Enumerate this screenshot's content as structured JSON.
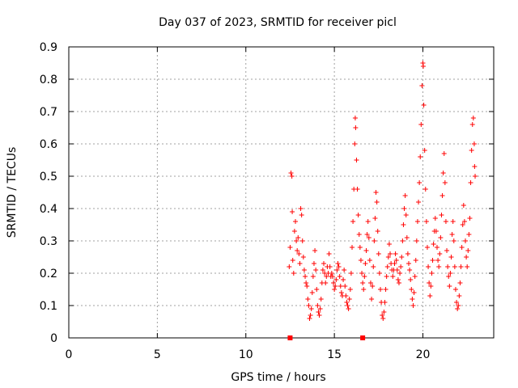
{
  "colors": {
    "series": "#ff0000",
    "grid": "#a0a0a0",
    "axis": "#000000"
  },
  "chart_data": {
    "type": "scatter",
    "title": "Day 037 of 2023, SRMTID for receiver picl",
    "xlabel": "GPS time / hours",
    "ylabel": "SRMTID / TECUs",
    "xlim": [
      0,
      24
    ],
    "ylim": [
      0,
      0.9
    ],
    "xticks": [
      0,
      5,
      10,
      15,
      20
    ],
    "yticks": [
      0,
      0.1,
      0.2,
      0.3,
      0.4,
      0.5,
      0.6,
      0.7,
      0.8,
      0.9
    ],
    "xtick_labels": [
      "0",
      "5",
      "10",
      "15",
      "20"
    ],
    "ytick_labels": [
      "0",
      "0.1",
      "0.2",
      "0.3",
      "0.4",
      "0.5",
      "0.6",
      "0.7",
      "0.8",
      "0.9"
    ],
    "grid": true,
    "marker": "plus",
    "series": [
      {
        "name": "SRMTID",
        "points": [
          [
            12.45,
            0.22
          ],
          [
            12.5,
            0.28
          ],
          [
            12.55,
            0.51
          ],
          [
            12.6,
            0.5
          ],
          [
            12.62,
            0.39
          ],
          [
            12.65,
            0.24
          ],
          [
            12.7,
            0.2
          ],
          [
            12.75,
            0.33
          ],
          [
            12.8,
            0.36
          ],
          [
            12.85,
            0.3
          ],
          [
            12.9,
            0.27
          ],
          [
            12.95,
            0.31
          ],
          [
            13.0,
            0.26
          ],
          [
            13.05,
            0.23
          ],
          [
            13.1,
            0.4
          ],
          [
            13.15,
            0.38
          ],
          [
            13.2,
            0.3
          ],
          [
            13.25,
            0.25
          ],
          [
            13.3,
            0.21
          ],
          [
            13.35,
            0.19
          ],
          [
            13.4,
            0.17
          ],
          [
            13.45,
            0.16
          ],
          [
            13.5,
            0.12
          ],
          [
            13.55,
            0.1
          ],
          [
            13.6,
            0.06
          ],
          [
            13.65,
            0.07
          ],
          [
            13.7,
            0.09
          ],
          [
            13.75,
            0.14
          ],
          [
            13.8,
            0.19
          ],
          [
            13.85,
            0.23
          ],
          [
            13.9,
            0.27
          ],
          [
            13.95,
            0.21
          ],
          [
            14.0,
            0.15
          ],
          [
            14.05,
            0.1
          ],
          [
            14.1,
            0.08
          ],
          [
            14.15,
            0.07
          ],
          [
            14.2,
            0.09
          ],
          [
            14.25,
            0.12
          ],
          [
            14.3,
            0.17
          ],
          [
            14.35,
            0.21
          ],
          [
            14.4,
            0.23
          ],
          [
            14.45,
            0.2
          ],
          [
            14.5,
            0.17
          ],
          [
            14.55,
            0.19
          ],
          [
            14.6,
            0.22
          ],
          [
            14.65,
            0.2
          ],
          [
            14.7,
            0.26
          ],
          [
            14.75,
            0.22
          ],
          [
            14.8,
            0.19
          ],
          [
            14.85,
            0.2
          ],
          [
            14.9,
            0.19
          ],
          [
            14.95,
            0.17
          ],
          [
            15.0,
            0.15
          ],
          [
            15.05,
            0.16
          ],
          [
            15.1,
            0.18
          ],
          [
            15.15,
            0.21
          ],
          [
            15.2,
            0.23
          ],
          [
            15.25,
            0.22
          ],
          [
            15.3,
            0.19
          ],
          [
            15.35,
            0.16
          ],
          [
            15.4,
            0.14
          ],
          [
            15.45,
            0.13
          ],
          [
            15.5,
            0.18
          ],
          [
            15.55,
            0.21
          ],
          [
            15.6,
            0.16
          ],
          [
            15.65,
            0.13
          ],
          [
            15.7,
            0.11
          ],
          [
            15.75,
            0.1
          ],
          [
            15.8,
            0.09
          ],
          [
            15.85,
            0.12
          ],
          [
            15.9,
            0.15
          ],
          [
            15.95,
            0.2
          ],
          [
            16.0,
            0.28
          ],
          [
            16.05,
            0.36
          ],
          [
            16.1,
            0.46
          ],
          [
            16.15,
            0.6
          ],
          [
            16.18,
            0.68
          ],
          [
            16.2,
            0.65
          ],
          [
            16.25,
            0.55
          ],
          [
            16.3,
            0.46
          ],
          [
            16.35,
            0.38
          ],
          [
            16.4,
            0.32
          ],
          [
            16.45,
            0.28
          ],
          [
            16.5,
            0.24
          ],
          [
            16.55,
            0.2
          ],
          [
            16.6,
            0.17
          ],
          [
            16.65,
            0.15
          ],
          [
            16.7,
            0.19
          ],
          [
            16.75,
            0.23
          ],
          [
            16.8,
            0.27
          ],
          [
            16.85,
            0.32
          ],
          [
            16.9,
            0.36
          ],
          [
            16.95,
            0.31
          ],
          [
            17.0,
            0.24
          ],
          [
            17.05,
            0.17
          ],
          [
            17.1,
            0.12
          ],
          [
            17.15,
            0.16
          ],
          [
            17.2,
            0.22
          ],
          [
            17.25,
            0.3
          ],
          [
            17.3,
            0.37
          ],
          [
            17.35,
            0.45
          ],
          [
            17.4,
            0.42
          ],
          [
            17.45,
            0.33
          ],
          [
            17.5,
            0.26
          ],
          [
            17.55,
            0.2
          ],
          [
            17.6,
            0.15
          ],
          [
            17.65,
            0.11
          ],
          [
            17.7,
            0.07
          ],
          [
            17.75,
            0.06
          ],
          [
            17.8,
            0.08
          ],
          [
            17.85,
            0.11
          ],
          [
            17.9,
            0.15
          ],
          [
            17.95,
            0.19
          ],
          [
            18.0,
            0.22
          ],
          [
            18.05,
            0.25
          ],
          [
            18.1,
            0.29
          ],
          [
            18.15,
            0.26
          ],
          [
            18.2,
            0.23
          ],
          [
            18.25,
            0.21
          ],
          [
            18.3,
            0.19
          ],
          [
            18.35,
            0.21
          ],
          [
            18.4,
            0.23
          ],
          [
            18.45,
            0.26
          ],
          [
            18.5,
            0.24
          ],
          [
            18.55,
            0.21
          ],
          [
            18.6,
            0.18
          ],
          [
            18.65,
            0.17
          ],
          [
            18.7,
            0.2
          ],
          [
            18.75,
            0.22
          ],
          [
            18.8,
            0.25
          ],
          [
            18.85,
            0.3
          ],
          [
            18.9,
            0.35
          ],
          [
            18.95,
            0.4
          ],
          [
            19.0,
            0.44
          ],
          [
            19.05,
            0.38
          ],
          [
            19.1,
            0.31
          ],
          [
            19.15,
            0.26
          ],
          [
            19.2,
            0.23
          ],
          [
            19.25,
            0.21
          ],
          [
            19.3,
            0.18
          ],
          [
            19.35,
            0.15
          ],
          [
            19.4,
            0.12
          ],
          [
            19.45,
            0.1
          ],
          [
            19.5,
            0.14
          ],
          [
            19.55,
            0.19
          ],
          [
            19.6,
            0.24
          ],
          [
            19.65,
            0.3
          ],
          [
            19.7,
            0.36
          ],
          [
            19.75,
            0.42
          ],
          [
            19.8,
            0.48
          ],
          [
            19.85,
            0.56
          ],
          [
            19.9,
            0.66
          ],
          [
            19.95,
            0.78
          ],
          [
            20.0,
            0.85
          ],
          [
            20.02,
            0.84
          ],
          [
            20.05,
            0.72
          ],
          [
            20.1,
            0.58
          ],
          [
            20.15,
            0.46
          ],
          [
            20.2,
            0.36
          ],
          [
            20.25,
            0.28
          ],
          [
            20.3,
            0.22
          ],
          [
            20.35,
            0.17
          ],
          [
            20.4,
            0.13
          ],
          [
            20.45,
            0.16
          ],
          [
            20.5,
            0.2
          ],
          [
            20.55,
            0.24
          ],
          [
            20.6,
            0.29
          ],
          [
            20.65,
            0.33
          ],
          [
            20.7,
            0.37
          ],
          [
            20.75,
            0.33
          ],
          [
            20.8,
            0.28
          ],
          [
            20.85,
            0.24
          ],
          [
            20.9,
            0.22
          ],
          [
            20.95,
            0.26
          ],
          [
            21.0,
            0.31
          ],
          [
            21.05,
            0.38
          ],
          [
            21.1,
            0.44
          ],
          [
            21.15,
            0.51
          ],
          [
            21.2,
            0.57
          ],
          [
            21.25,
            0.48
          ],
          [
            21.3,
            0.36
          ],
          [
            21.35,
            0.27
          ],
          [
            21.4,
            0.22
          ],
          [
            21.45,
            0.19
          ],
          [
            21.5,
            0.16
          ],
          [
            21.55,
            0.2
          ],
          [
            21.6,
            0.25
          ],
          [
            21.65,
            0.32
          ],
          [
            21.7,
            0.36
          ],
          [
            21.75,
            0.3
          ],
          [
            21.8,
            0.22
          ],
          [
            21.85,
            0.15
          ],
          [
            21.9,
            0.11
          ],
          [
            21.95,
            0.09
          ],
          [
            22.0,
            0.1
          ],
          [
            22.05,
            0.13
          ],
          [
            22.1,
            0.17
          ],
          [
            22.15,
            0.22
          ],
          [
            22.2,
            0.28
          ],
          [
            22.25,
            0.35
          ],
          [
            22.3,
            0.41
          ],
          [
            22.35,
            0.36
          ],
          [
            22.4,
            0.3
          ],
          [
            22.45,
            0.25
          ],
          [
            22.5,
            0.22
          ],
          [
            22.55,
            0.27
          ],
          [
            22.6,
            0.32
          ],
          [
            22.65,
            0.37
          ],
          [
            22.7,
            0.48
          ],
          [
            22.75,
            0.58
          ],
          [
            22.8,
            0.66
          ],
          [
            22.85,
            0.68
          ],
          [
            22.9,
            0.6
          ],
          [
            22.92,
            0.53
          ],
          [
            22.95,
            0.5
          ]
        ]
      }
    ],
    "axis_markers": [
      {
        "x": 12.5,
        "y": 0
      },
      {
        "x": 16.6,
        "y": 0
      }
    ]
  }
}
